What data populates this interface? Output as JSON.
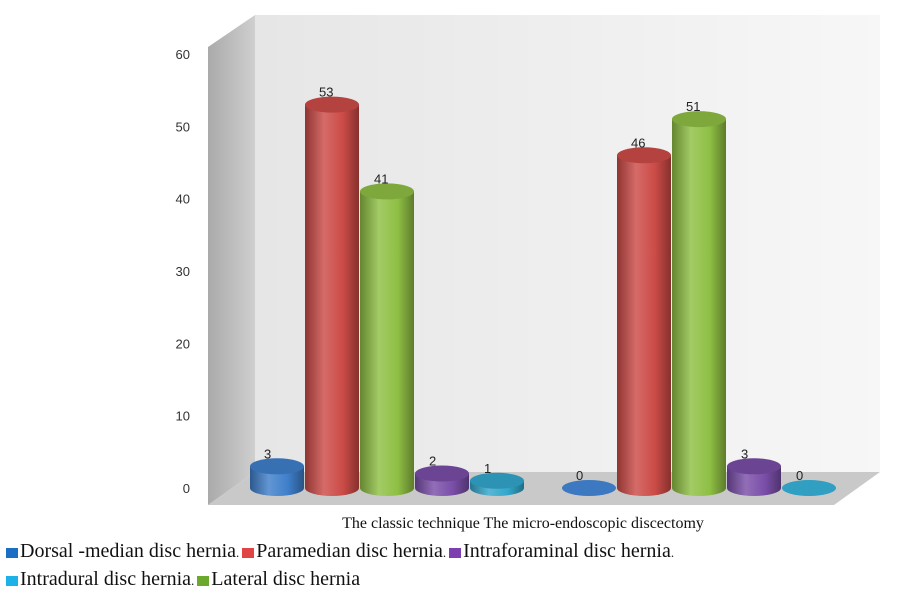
{
  "chart_data": {
    "type": "bar",
    "style": "3d-cylinder",
    "categories": [
      "The classic technique",
      "The micro-endoscopic discectomy"
    ],
    "x_caption": "The classic technique The micro-endoscopic discectomy",
    "ylim": [
      0,
      60
    ],
    "yticks": [
      "0",
      "10",
      "20",
      "30",
      "40",
      "50",
      "60"
    ],
    "grid": false,
    "legend_placement": "bottom",
    "series": [
      {
        "name": "Dorsal -median disc hernia",
        "color": "#3f7fcb",
        "values": [
          3,
          0
        ],
        "labels": [
          "3",
          "0"
        ]
      },
      {
        "name": "Paramedian disc hernia",
        "color": "#cc4b47",
        "values": [
          53,
          46
        ],
        "labels": [
          "53",
          "46"
        ]
      },
      {
        "name": "Lateral disc hernia",
        "color": "#8fbf44",
        "values": [
          41,
          51
        ],
        "labels": [
          "41",
          "51"
        ]
      },
      {
        "name": "Intraforaminal disc hernia",
        "color": "#7a4ea8",
        "values": [
          2,
          3
        ],
        "labels": [
          "2",
          "3"
        ]
      },
      {
        "name": "Intradural disc hernia",
        "color": "#33a7cc",
        "values": [
          1,
          0
        ],
        "labels": [
          "1",
          "0"
        ]
      }
    ]
  },
  "legend": {
    "row1": [
      {
        "label": "Dorsal -median disc hernia",
        "sep": ".",
        "color": "#1a6fc4"
      },
      {
        "label": "Paramedian disc hernia",
        "sep": ".",
        "color": "#e04444"
      },
      {
        "label": "Intraforaminal disc hernia",
        "sep": ".",
        "color": "#7d3fb0"
      }
    ],
    "row2": [
      {
        "label": "Intradural disc hernia",
        "sep": ".",
        "color": "#1cb2e8"
      },
      {
        "label": "Lateral disc hernia",
        "sep": "",
        "color": "#6aa82e"
      }
    ]
  }
}
